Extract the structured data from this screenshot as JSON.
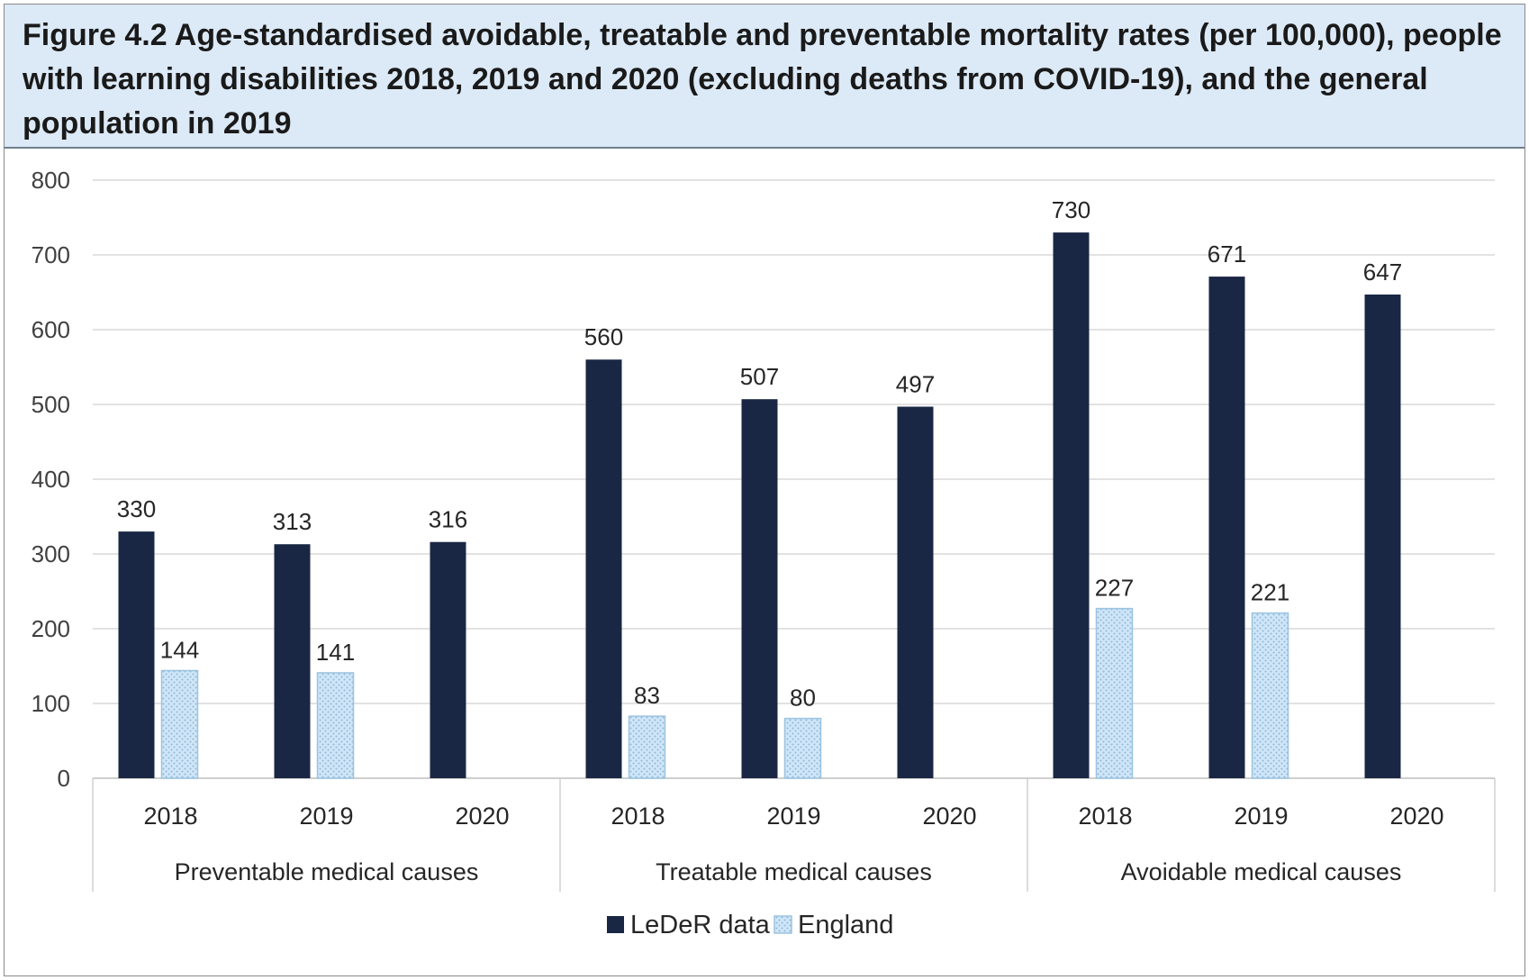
{
  "chart_data": {
    "type": "bar",
    "title": "Figure 4.2 Age-standardised avoidable, treatable and preventable mortality rates (per 100,000), people with learning disabilities 2018, 2019 and 2020 (excluding deaths from COVID-19), and the general population in 2019",
    "xlabel": "",
    "ylabel": "",
    "ylim": [
      0,
      800
    ],
    "yticks": [
      0,
      100,
      200,
      300,
      400,
      500,
      600,
      700,
      800
    ],
    "grid": true,
    "legend_position": "bottom",
    "groups": [
      {
        "name": "Preventable medical causes",
        "categories": [
          "2018",
          "2019",
          "2020"
        ]
      },
      {
        "name": "Treatable medical causes",
        "categories": [
          "2018",
          "2019",
          "2020"
        ]
      },
      {
        "name": "Avoidable medical causes",
        "categories": [
          "2018",
          "2019",
          "2020"
        ]
      }
    ],
    "series": [
      {
        "name": "LeDeR data",
        "color": "#1a2744",
        "values": [
          330,
          313,
          316,
          560,
          507,
          497,
          730,
          671,
          647
        ]
      },
      {
        "name": "England",
        "color": "#c9e2f5",
        "values": [
          144,
          141,
          null,
          83,
          80,
          null,
          227,
          221,
          null
        ]
      }
    ]
  }
}
